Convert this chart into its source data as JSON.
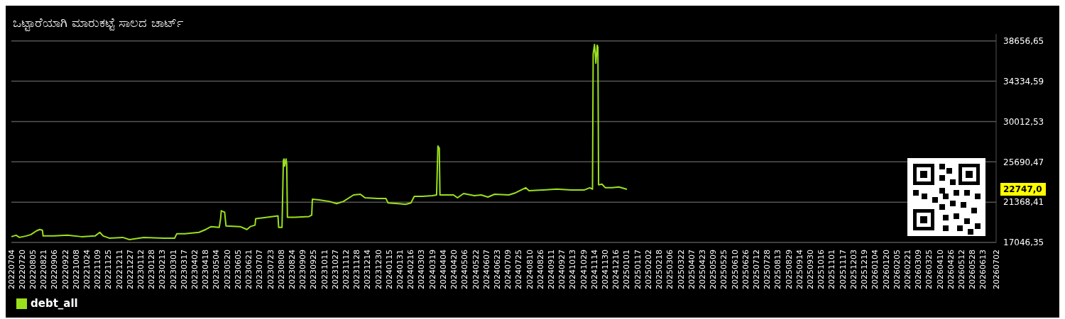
{
  "chart_data": {
    "type": "line",
    "title": "ಒಟ್ಟಾರೆಯಾಗಿ ಮಾರುಕಟ್ಟೆ ಸಾಲದ ಚಾರ್ಟ್",
    "x": [
      "2022-07-04",
      "2022-07-11",
      "2022-07-16",
      "2022-07-26",
      "2022-08-02",
      "2022-08-10",
      "2022-08-15",
      "2022-08-19",
      "2022-08-20",
      "2022-09-05",
      "2022-09-25",
      "2022-10-16",
      "2022-11-05",
      "2022-11-12",
      "2022-11-17",
      "2022-11-26",
      "2022-12-16",
      "2022-12-26",
      "2023-01-16",
      "2023-02-15",
      "2023-03-03",
      "2023-03-06",
      "2023-03-18",
      "2023-04-08",
      "2023-04-13",
      "2023-04-18",
      "2023-04-26",
      "2023-05-08",
      "2023-05-10",
      "2023-05-11",
      "2023-05-16",
      "2023-05-18",
      "2023-06-08",
      "2023-06-18",
      "2023-06-23",
      "2023-06-30",
      "2023-07-01",
      "2023-07-18",
      "2023-08-03",
      "2023-08-04",
      "2023-08-09",
      "2023-08-11",
      "2023-08-12",
      "2023-08-13",
      "2023-08-15",
      "2023-08-16",
      "2023-08-17",
      "2023-08-28",
      "2023-09-18",
      "2023-09-22",
      "2023-09-23",
      "2023-10-03",
      "2023-10-18",
      "2023-10-29",
      "2023-11-08",
      "2023-11-23",
      "2023-12-03",
      "2023-12-10",
      "2023-12-29",
      "2024-01-10",
      "2024-01-13",
      "2024-01-28",
      "2024-02-08",
      "2024-02-16",
      "2024-02-21",
      "2024-03-04",
      "2024-03-19",
      "2024-03-25",
      "2024-03-27",
      "2024-03-29",
      "2024-03-30",
      "2024-04-19",
      "2024-04-25",
      "2024-05-04",
      "2024-05-20",
      "2024-05-30",
      "2024-06-09",
      "2024-06-19",
      "2024-07-10",
      "2024-07-20",
      "2024-08-04",
      "2024-08-09",
      "2024-08-30",
      "2024-09-19",
      "2024-10-10",
      "2024-10-30",
      "2024-11-07",
      "2024-11-11",
      "2024-11-12",
      "2024-11-14",
      "2024-11-16",
      "2024-11-18",
      "2024-11-19",
      "2024-11-20",
      "2024-11-25",
      "2024-11-30",
      "2024-12-10",
      "2024-12-20",
      "2025-01-01"
    ],
    "series": [
      {
        "name": "debt_all",
        "color": "#9be01c",
        "values": [
          17664,
          17818,
          17587,
          17741,
          17895,
          18281,
          18436,
          18358,
          17741,
          17741,
          17818,
          17664,
          17741,
          18127,
          17741,
          17509,
          17587,
          17355,
          17587,
          17509,
          17509,
          17972,
          17972,
          18127,
          18281,
          18436,
          18745,
          18667,
          19594,
          20443,
          20288,
          18822,
          18745,
          18436,
          18745,
          18899,
          19594,
          19748,
          19903,
          18667,
          18667,
          25847,
          26001,
          25229,
          26001,
          25461,
          19748,
          19748,
          19825,
          19980,
          21678,
          21601,
          21446,
          21215,
          21446,
          22141,
          22218,
          21832,
          21755,
          21755,
          21292,
          21215,
          21138,
          21292,
          21987,
          21987,
          22064,
          22141,
          27391,
          27160,
          22141,
          22141,
          21832,
          22296,
          22064,
          22141,
          21910,
          22218,
          22141,
          22373,
          22913,
          22604,
          22682,
          22759,
          22682,
          22682,
          22913,
          22759,
          37272,
          38276,
          36269,
          38199,
          37967,
          23222,
          23299,
          22913,
          22913,
          22990,
          22747
        ]
      }
    ],
    "xlim": [
      "2022-07-04",
      "2026-07-02"
    ],
    "xticks": [
      {
        "value": "2022-07-04",
        "label": "20220704"
      },
      {
        "value": "2022-07-20",
        "label": "20220720"
      },
      {
        "value": "2022-08-05",
        "label": "20220805"
      },
      {
        "value": "2022-08-21",
        "label": "20220821"
      },
      {
        "value": "2022-09-06",
        "label": "20220906"
      },
      {
        "value": "2022-09-22",
        "label": "20220922"
      },
      {
        "value": "2022-10-08",
        "label": "20221008"
      },
      {
        "value": "2022-10-24",
        "label": "20221024"
      },
      {
        "value": "2022-11-09",
        "label": "20221109"
      },
      {
        "value": "2022-11-25",
        "label": "20221125"
      },
      {
        "value": "2022-12-11",
        "label": "20221211"
      },
      {
        "value": "2022-12-27",
        "label": "20221227"
      },
      {
        "value": "2023-01-12",
        "label": "20230112"
      },
      {
        "value": "2023-01-28",
        "label": "20230128"
      },
      {
        "value": "2023-02-13",
        "label": "20230213"
      },
      {
        "value": "2023-03-01",
        "label": "20230301"
      },
      {
        "value": "2023-03-17",
        "label": "20230317"
      },
      {
        "value": "2023-04-02",
        "label": "20230402"
      },
      {
        "value": "2023-04-18",
        "label": "20230418"
      },
      {
        "value": "2023-05-04",
        "label": "20230504"
      },
      {
        "value": "2023-05-20",
        "label": "20230520"
      },
      {
        "value": "2023-06-05",
        "label": "20230605"
      },
      {
        "value": "2023-06-21",
        "label": "20230621"
      },
      {
        "value": "2023-07-07",
        "label": "20230707"
      },
      {
        "value": "2023-07-23",
        "label": "20230723"
      },
      {
        "value": "2023-08-08",
        "label": "20230808"
      },
      {
        "value": "2023-08-24",
        "label": "20230824"
      },
      {
        "value": "2023-09-09",
        "label": "20230909"
      },
      {
        "value": "2023-09-25",
        "label": "20230925"
      },
      {
        "value": "2023-10-11",
        "label": "20231011"
      },
      {
        "value": "2023-10-27",
        "label": "20231027"
      },
      {
        "value": "2023-11-12",
        "label": "20231112"
      },
      {
        "value": "2023-11-28",
        "label": "20231128"
      },
      {
        "value": "2023-12-14",
        "label": "20231214"
      },
      {
        "value": "2023-12-30",
        "label": "20231230"
      },
      {
        "value": "2024-01-15",
        "label": "20240115"
      },
      {
        "value": "2024-01-31",
        "label": "20240131"
      },
      {
        "value": "2024-02-16",
        "label": "20240216"
      },
      {
        "value": "2024-03-03",
        "label": "20240303"
      },
      {
        "value": "2024-03-19",
        "label": "20240319"
      },
      {
        "value": "2024-04-04",
        "label": "20240404"
      },
      {
        "value": "2024-04-20",
        "label": "20240420"
      },
      {
        "value": "2024-05-06",
        "label": "20240506"
      },
      {
        "value": "2024-05-22",
        "label": "20240522"
      },
      {
        "value": "2024-06-07",
        "label": "20240607"
      },
      {
        "value": "2024-06-23",
        "label": "20240623"
      },
      {
        "value": "2024-07-09",
        "label": "20240709"
      },
      {
        "value": "2024-07-25",
        "label": "20240725"
      },
      {
        "value": "2024-08-10",
        "label": "20240810"
      },
      {
        "value": "2024-08-26",
        "label": "20240826"
      },
      {
        "value": "2024-09-11",
        "label": "20240911"
      },
      {
        "value": "2024-09-27",
        "label": "20240927"
      },
      {
        "value": "2024-10-13",
        "label": "20241013"
      },
      {
        "value": "2024-10-29",
        "label": "20241029"
      },
      {
        "value": "2024-11-14",
        "label": "20241114"
      },
      {
        "value": "2024-11-30",
        "label": "20241130"
      },
      {
        "value": "2024-12-16",
        "label": "20241216"
      },
      {
        "value": "2025-01-01",
        "label": "20250101"
      },
      {
        "value": "2025-01-17",
        "label": "20250117"
      },
      {
        "value": "2025-02-02",
        "label": "20250202"
      },
      {
        "value": "2025-02-18",
        "label": "20250218"
      },
      {
        "value": "2025-03-06",
        "label": "20250306"
      },
      {
        "value": "2025-03-22",
        "label": "20250322"
      },
      {
        "value": "2025-04-07",
        "label": "20250407"
      },
      {
        "value": "2025-04-23",
        "label": "20250423"
      },
      {
        "value": "2025-05-09",
        "label": "20250509"
      },
      {
        "value": "2025-05-25",
        "label": "20250525"
      },
      {
        "value": "2025-06-10",
        "label": "20250610"
      },
      {
        "value": "2025-06-26",
        "label": "20250626"
      },
      {
        "value": "2025-07-12",
        "label": "20250712"
      },
      {
        "value": "2025-07-28",
        "label": "20250728"
      },
      {
        "value": "2025-08-13",
        "label": "20250813"
      },
      {
        "value": "2025-08-29",
        "label": "20250829"
      },
      {
        "value": "2025-09-14",
        "label": "20250914"
      },
      {
        "value": "2025-09-30",
        "label": "20250930"
      },
      {
        "value": "2025-10-16",
        "label": "20251016"
      },
      {
        "value": "2025-11-01",
        "label": "20251101"
      },
      {
        "value": "2025-11-17",
        "label": "20251117"
      },
      {
        "value": "2025-12-03",
        "label": "20251203"
      },
      {
        "value": "2025-12-19",
        "label": "20251219"
      },
      {
        "value": "2026-01-04",
        "label": "20260104"
      },
      {
        "value": "2026-01-20",
        "label": "20260120"
      },
      {
        "value": "2026-02-05",
        "label": "20260205"
      },
      {
        "value": "2026-02-21",
        "label": "20260221"
      },
      {
        "value": "2026-03-09",
        "label": "20260309"
      },
      {
        "value": "2026-03-25",
        "label": "20260325"
      },
      {
        "value": "2026-04-10",
        "label": "20260410"
      },
      {
        "value": "2026-04-26",
        "label": "20260426"
      },
      {
        "value": "2026-05-12",
        "label": "20260512"
      },
      {
        "value": "2026-05-28",
        "label": "20260528"
      },
      {
        "value": "2026-06-13",
        "label": "20260613"
      },
      {
        "value": "2026-07-02",
        "label": "20260702"
      }
    ],
    "ylim": [
      17046.35,
      39400
    ],
    "yticks": [
      {
        "value": 17046.35,
        "label": "17046,35"
      },
      {
        "value": 21368.41,
        "label": "21368,41"
      },
      {
        "value": 25690.47,
        "label": "25690,47"
      },
      {
        "value": 30012.53,
        "label": "30012,53"
      },
      {
        "value": 34334.59,
        "label": "34334,59"
      },
      {
        "value": 38656.65,
        "label": "38656,65"
      }
    ],
    "annotations": [
      "22747,0"
    ],
    "grid": "y",
    "legend": "bottom left",
    "line_style": "solid",
    "marker": "none"
  }
}
